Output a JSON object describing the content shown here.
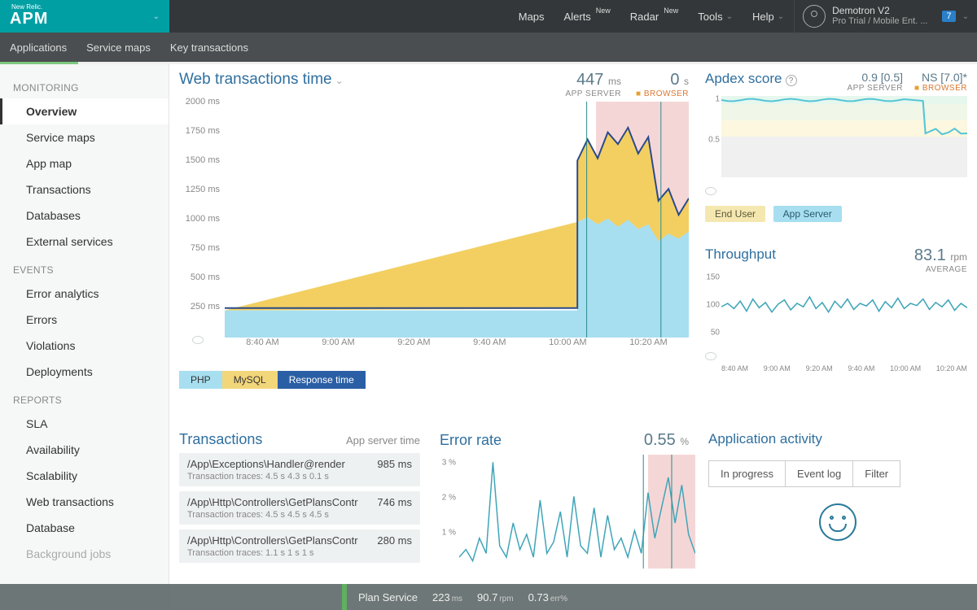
{
  "brand": {
    "small": "New Relic.",
    "big": "APM"
  },
  "topnav": {
    "maps": "Maps",
    "alerts": "Alerts",
    "alerts_sup": "New",
    "radar": "Radar",
    "radar_sup": "New",
    "tools": "Tools",
    "help": "Help"
  },
  "user": {
    "name": "Demotron V2",
    "plan": "Pro Trial / Mobile Ent. ...",
    "notif": "7"
  },
  "subnav": {
    "apps": "Applications",
    "maps": "Service maps",
    "key": "Key transactions"
  },
  "sidebar": {
    "monitoring": "MONITORING",
    "overview": "Overview",
    "servicemaps": "Service maps",
    "appmap": "App map",
    "transactions": "Transactions",
    "databases": "Databases",
    "external": "External services",
    "events": "EVENTS",
    "erranalytics": "Error analytics",
    "errors": "Errors",
    "violations": "Violations",
    "deployments": "Deployments",
    "reports": "REPORTS",
    "sla": "SLA",
    "availability": "Availability",
    "scalability": "Scalability",
    "webtx": "Web transactions",
    "database": "Database",
    "bgjobs": "Background jobs"
  },
  "webtx": {
    "title": "Web transactions time",
    "value1": "447",
    "unit1": "ms",
    "label1": "APP SERVER",
    "value2": "0",
    "unit2": "s",
    "label2": "BROWSER",
    "y_ticks": [
      "2000 ms",
      "1750 ms",
      "1500 ms",
      "1250 ms",
      "1000 ms",
      "750 ms",
      "500 ms",
      "250 ms"
    ],
    "x_ticks": [
      "8:40 AM",
      "9:00 AM",
      "9:20 AM",
      "9:40 AM",
      "10:00 AM",
      "10:20 AM"
    ],
    "legend": {
      "php": "PHP",
      "mysql": "MySQL",
      "resp": "Response time"
    },
    "chart": {
      "ymax": 2000,
      "colors": {
        "php": "#a7dff0",
        "mysql": "#f2cf60",
        "line": "#2a4a8a",
        "shade": "#f5d6d6"
      },
      "baseline": 230,
      "spike_start": 0.76,
      "spike_php": [
        980,
        1020,
        960,
        1010,
        940,
        1000,
        920,
        960,
        820,
        880,
        840,
        900
      ],
      "spike_total": [
        1500,
        1680,
        1520,
        1740,
        1640,
        1780,
        1560,
        1700,
        1160,
        1260,
        1040,
        1180
      ],
      "shade_start": 0.8
    }
  },
  "apdex": {
    "title": "Apdex score",
    "v1": "0.9 [0.5]",
    "l1": "APP SERVER",
    "v2": "NS [7.0]*",
    "l2": "BROWSER",
    "pill_end": "End User",
    "pill_app": "App Server",
    "colors": {
      "line": "#55c5d5",
      "bg_top": "#e6f7ee",
      "bg_mid": "#fdf7df",
      "bg_bot": "#f0f0f0"
    }
  },
  "throughput": {
    "title": "Throughput",
    "value": "83.1",
    "unit": "rpm",
    "label": "AVERAGE",
    "y_ticks": [
      "150",
      "100",
      "50"
    ],
    "x_ticks": [
      "8:40 AM",
      "9:00 AM",
      "9:20 AM",
      "9:40 AM",
      "10:00 AM",
      "10:20 AM"
    ],
    "line_color": "#3fa5b8",
    "data": [
      82,
      90,
      78,
      95,
      72,
      100,
      80,
      92,
      70,
      88,
      98,
      75,
      90,
      82,
      105,
      78,
      92,
      70,
      95,
      80,
      100,
      76,
      90,
      84,
      98,
      72,
      94,
      80,
      102,
      78,
      90,
      85,
      100,
      76,
      92,
      82,
      98,
      74,
      90,
      80
    ]
  },
  "transactions": {
    "title": "Transactions",
    "sub": "App server time",
    "rows": [
      {
        "name": "/App\\Exceptions\\Handler@render",
        "time": "985 ms",
        "traces": "Transaction traces:  4.5 s   4.3 s   0.1 s"
      },
      {
        "name": "/App\\Http\\Controllers\\GetPlansContr",
        "time": "746 ms",
        "traces": "Transaction traces:  4.5 s   4.5 s   4.5 s"
      },
      {
        "name": "/App\\Http\\Controllers\\GetPlansContr",
        "time": "280 ms",
        "traces": "Transaction traces:  1.1 s   1 s   1 s"
      }
    ]
  },
  "error": {
    "title": "Error rate",
    "value": "0.55",
    "unit": "%",
    "y_ticks": [
      "3 %",
      "2 %",
      "1 %"
    ],
    "line_color": "#3fa5b8",
    "data": [
      0.3,
      0.5,
      0.2,
      0.8,
      0.4,
      2.8,
      0.6,
      0.3,
      1.2,
      0.5,
      0.9,
      0.3,
      1.8,
      0.4,
      0.7,
      1.5,
      0.3,
      1.9,
      0.6,
      0.4,
      1.6,
      0.3,
      1.4,
      0.5,
      0.8,
      0.3,
      1.0,
      0.4,
      2.0,
      0.8,
      1.6,
      2.4,
      1.2,
      2.2,
      0.9,
      0.4
    ]
  },
  "activity": {
    "title": "Application activity",
    "tab1": "In progress",
    "tab2": "Event log",
    "tab3": "Filter"
  },
  "bottombar": {
    "name": "Plan Service",
    "v1": "223",
    "u1": "ms",
    "v2": "90.7",
    "u2": "rpm",
    "v3": "0.73",
    "u3": "err%"
  }
}
